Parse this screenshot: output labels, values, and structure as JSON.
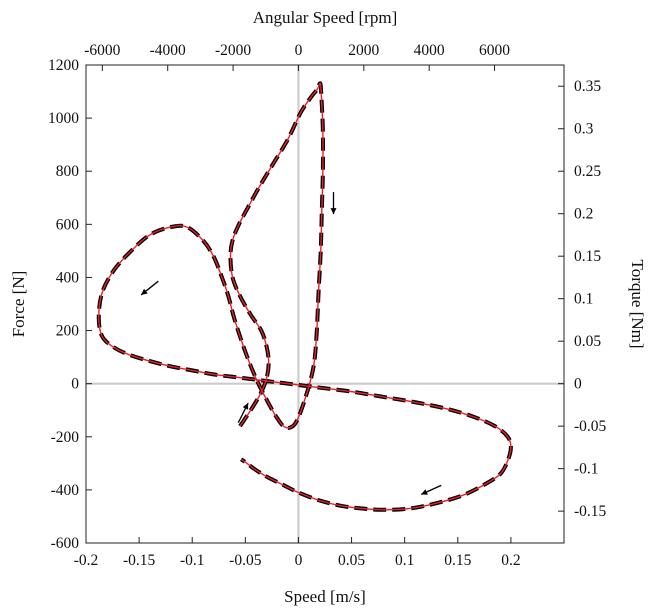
{
  "chart_data": {
    "type": "line",
    "title": "",
    "xlabel": "Speed [m/s]",
    "ylabel": "Force [N]",
    "x2label": "Angular Speed [rpm]",
    "y2label": "Torque [Nm]",
    "xlim": [
      -0.2,
      0.25
    ],
    "ylim": [
      -600,
      1200
    ],
    "x2lim": [
      -6500,
      8125
    ],
    "y2lim": [
      -0.1875,
      0.375
    ],
    "xticks": [
      -0.2,
      -0.15,
      -0.1,
      -0.05,
      0,
      0.05,
      0.1,
      0.15,
      0.2
    ],
    "xtick_labels": [
      "-0.2",
      "-0.15",
      "-0.1",
      "-0.05",
      "0",
      "0.05",
      "0.1",
      "0.15",
      "0.2"
    ],
    "yticks": [
      -600,
      -400,
      -200,
      0,
      200,
      400,
      600,
      800,
      1000,
      1200
    ],
    "ytick_labels": [
      "-600",
      "-400",
      "-200",
      "0",
      "200",
      "400",
      "600",
      "800",
      "1000",
      "1200"
    ],
    "x2ticks": [
      -6000,
      -4000,
      -2000,
      0,
      2000,
      4000,
      6000
    ],
    "x2tick_labels": [
      "-6000",
      "-4000",
      "-2000",
      "0",
      "2000",
      "4000",
      "6000"
    ],
    "y2ticks": [
      -0.15,
      -0.1,
      -0.05,
      0,
      0.05,
      0.1,
      0.15,
      0.2,
      0.25,
      0.3,
      0.35
    ],
    "y2tick_labels": [
      "-0.15",
      "-0.1",
      "-0.05",
      "0",
      "0.05",
      "0.1",
      "0.15",
      "0.2",
      "0.25",
      "0.3",
      "0.35"
    ],
    "grid": false,
    "zero_lines": true,
    "colors": {
      "measured": "#000000",
      "model": "#e8202a",
      "zero_line": "#cccccc",
      "axis": "#222222"
    },
    "series": [
      {
        "line_style": "dashed-black",
        "x": [
          -0.055,
          -0.045,
          -0.036,
          -0.03,
          -0.028,
          -0.03,
          -0.035,
          -0.045,
          -0.055,
          -0.062,
          -0.064,
          -0.062,
          -0.056,
          -0.048,
          -0.037,
          -0.025,
          -0.01,
          0.002,
          0.012,
          0.018,
          0.02,
          0.021,
          0.022,
          0.023,
          0.023,
          0.022,
          0.021,
          0.019,
          0.017,
          0.014,
          0.006,
          -0.003,
          -0.012,
          -0.02,
          -0.03,
          -0.04,
          -0.05,
          -0.06,
          -0.066,
          -0.072,
          -0.08,
          -0.09,
          -0.105,
          -0.12,
          -0.14,
          -0.16,
          -0.175,
          -0.185,
          -0.188,
          -0.185,
          -0.175,
          -0.16,
          -0.14,
          -0.12,
          -0.1,
          -0.08,
          -0.06,
          -0.04,
          -0.02,
          0.0,
          0.02,
          0.05,
          0.08,
          0.11,
          0.14,
          0.165,
          0.185,
          0.197,
          0.2,
          0.197,
          0.19,
          0.175,
          0.155,
          0.13,
          0.105,
          0.08,
          0.06,
          0.04,
          0.02,
          0.0,
          -0.015,
          -0.03,
          -0.042,
          -0.05,
          -0.054
        ],
        "y": [
          -160,
          -100,
          -40,
          20,
          80,
          140,
          200,
          260,
          330,
          400,
          480,
          540,
          600,
          660,
          740,
          820,
          920,
          1020,
          1080,
          1110,
          1130,
          1120,
          1050,
          950,
          800,
          650,
          500,
          350,
          180,
          60,
          -60,
          -150,
          -165,
          -130,
          -60,
          20,
          120,
          240,
          330,
          400,
          480,
          540,
          590,
          590,
          560,
          490,
          420,
          340,
          250,
          180,
          140,
          110,
          85,
          65,
          50,
          35,
          25,
          15,
          5,
          -5,
          -15,
          -30,
          -50,
          -70,
          -95,
          -125,
          -160,
          -200,
          -240,
          -290,
          -340,
          -380,
          -420,
          -450,
          -470,
          -475,
          -470,
          -460,
          -440,
          -410,
          -380,
          -350,
          -320,
          -295,
          -285
        ]
      },
      {
        "line_style": "solid-red",
        "x": [
          -0.055,
          -0.045,
          -0.036,
          -0.03,
          -0.028,
          -0.03,
          -0.035,
          -0.045,
          -0.055,
          -0.062,
          -0.064,
          -0.062,
          -0.056,
          -0.048,
          -0.037,
          -0.025,
          -0.01,
          0.002,
          0.012,
          0.018,
          0.02,
          0.021,
          0.022,
          0.023,
          0.023,
          0.022,
          0.021,
          0.019,
          0.017,
          0.014,
          0.006,
          -0.003,
          -0.012,
          -0.02,
          -0.03,
          -0.04,
          -0.05,
          -0.06,
          -0.066,
          -0.072,
          -0.08,
          -0.09,
          -0.105,
          -0.12,
          -0.14,
          -0.16,
          -0.175,
          -0.185,
          -0.188,
          -0.185,
          -0.175,
          -0.16,
          -0.14,
          -0.12,
          -0.1,
          -0.08,
          -0.06,
          -0.04,
          -0.02,
          0.0,
          0.02,
          0.05,
          0.08,
          0.11,
          0.14,
          0.165,
          0.185,
          0.197,
          0.2,
          0.197,
          0.19,
          0.175,
          0.155,
          0.13,
          0.105,
          0.08,
          0.06,
          0.04,
          0.02,
          0.0,
          -0.015,
          -0.03,
          -0.042,
          -0.05,
          -0.054
        ],
        "y": [
          -160,
          -100,
          -40,
          20,
          80,
          140,
          200,
          260,
          330,
          400,
          480,
          540,
          600,
          660,
          740,
          820,
          920,
          1020,
          1080,
          1110,
          1130,
          1120,
          1050,
          950,
          800,
          650,
          500,
          350,
          180,
          60,
          -60,
          -150,
          -165,
          -130,
          -60,
          20,
          120,
          240,
          330,
          400,
          480,
          540,
          590,
          590,
          560,
          490,
          420,
          340,
          250,
          180,
          140,
          110,
          85,
          65,
          50,
          35,
          25,
          15,
          5,
          -5,
          -15,
          -30,
          -50,
          -70,
          -95,
          -125,
          -160,
          -200,
          -240,
          -290,
          -340,
          -380,
          -420,
          -450,
          -470,
          -475,
          -470,
          -460,
          -440,
          -410,
          -380,
          -350,
          -320,
          -295,
          -285
        ]
      }
    ],
    "direction_arrows": [
      {
        "x": 0.033,
        "y": 680,
        "dx": 0,
        "dy": -1
      },
      {
        "x": -0.14,
        "y": 360,
        "dx": -1,
        "dy": -0.8
      },
      {
        "x": -0.052,
        "y": -110,
        "dx": 0.5,
        "dy": 1
      },
      {
        "x": 0.125,
        "y": -400,
        "dx": -1,
        "dy": -0.45
      }
    ]
  }
}
